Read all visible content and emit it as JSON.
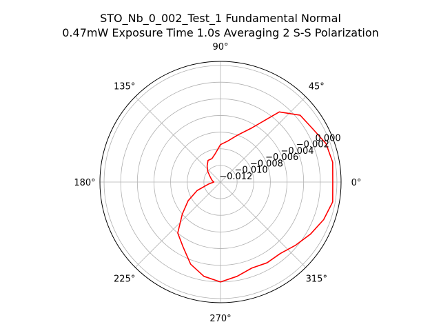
{
  "chart_data": {
    "type": "line",
    "projection": "polar",
    "title": {
      "line1": "STO_Nb_0_002_Test_1 Fundamental Normal",
      "line2": "0.47mW Exposure Time 1.0s Averaging 2 S-S  Polarization"
    },
    "theta_unit": "degrees",
    "theta_ticks": [
      "0°",
      "45°",
      "90°",
      "135°",
      "180°",
      "225°",
      "270°",
      "315°"
    ],
    "r_ticks": [
      "−0.012",
      "−0.010",
      "−0.008",
      "−0.006",
      "−0.004",
      "−0.002",
      "0.000"
    ],
    "r_tick_values": [
      -0.012,
      -0.01,
      -0.008,
      -0.006,
      -0.004,
      -0.002,
      0.0
    ],
    "rlim": [
      -0.014,
      0.0005
    ],
    "r_label_angle_deg": 22.5,
    "grid": true,
    "series": [
      {
        "color": "#ff0000",
        "theta": [
          0,
          10,
          20,
          30,
          40,
          50,
          60,
          70,
          80,
          90,
          100,
          110,
          120,
          130,
          140,
          150,
          160,
          170,
          180,
          190,
          200,
          210,
          220,
          230,
          240,
          250,
          260,
          270,
          280,
          290,
          300,
          310,
          320,
          330,
          340,
          350,
          360
        ],
        "r": [
          -0.0005,
          -0.0003,
          -0.0005,
          -0.0012,
          -0.0015,
          -0.003,
          -0.0065,
          -0.008,
          -0.009,
          -0.0095,
          -0.0105,
          -0.011,
          -0.011,
          -0.0115,
          -0.012,
          -0.0125,
          -0.0128,
          -0.013,
          -0.0132,
          -0.0125,
          -0.011,
          -0.0095,
          -0.008,
          -0.006,
          -0.005,
          -0.0035,
          -0.0025,
          -0.002,
          -0.0025,
          -0.003,
          -0.0028,
          -0.0028,
          -0.0022,
          -0.0015,
          -0.0008,
          -0.0003,
          -0.0005
        ]
      }
    ]
  }
}
